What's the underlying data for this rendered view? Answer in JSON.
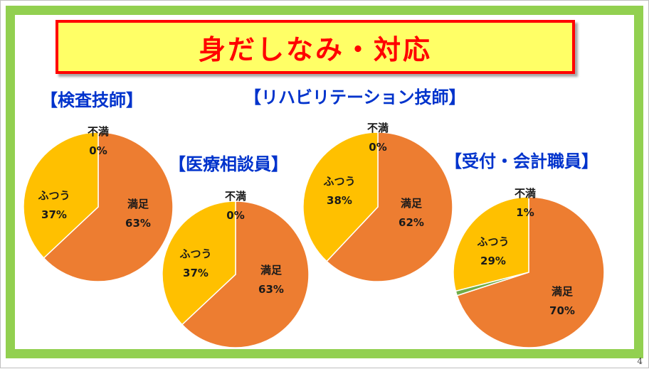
{
  "slide": {
    "title": "身だしなみ・対応",
    "page_number": "4"
  },
  "colors": {
    "frame": "#92d050",
    "title_bg": "#ffff66",
    "title_border": "#ff0000",
    "title_text": "#ff0000",
    "section_title": "#0033cc"
  },
  "chart_data": [
    {
      "type": "pie",
      "title": "【検査技師】",
      "slices": [
        {
          "label": "満足",
          "value": 63,
          "display": "63%",
          "color": "#ed7d31"
        },
        {
          "label": "ふつう",
          "value": 37,
          "display": "37%",
          "color": "#ffc000"
        },
        {
          "label": "不満",
          "value": 0,
          "display": "0%",
          "color": "#70ad47"
        }
      ]
    },
    {
      "type": "pie",
      "title": "【医療相談員】",
      "slices": [
        {
          "label": "満足",
          "value": 63,
          "display": "63%",
          "color": "#ed7d31"
        },
        {
          "label": "ふつう",
          "value": 37,
          "display": "37%",
          "color": "#ffc000"
        },
        {
          "label": "不満",
          "value": 0,
          "display": "0%",
          "color": "#70ad47"
        }
      ]
    },
    {
      "type": "pie",
      "title": "【リハビリテーション技師】",
      "slices": [
        {
          "label": "満足",
          "value": 62,
          "display": "62%",
          "color": "#ed7d31"
        },
        {
          "label": "ふつう",
          "value": 38,
          "display": "38%",
          "color": "#ffc000"
        },
        {
          "label": "不満",
          "value": 0,
          "display": "0%",
          "color": "#70ad47"
        }
      ]
    },
    {
      "type": "pie",
      "title": "【受付・会計職員】",
      "slices": [
        {
          "label": "満足",
          "value": 70,
          "display": "70%",
          "color": "#ed7d31"
        },
        {
          "label": "ふつう",
          "value": 29,
          "display": "29%",
          "color": "#ffc000"
        },
        {
          "label": "不満",
          "value": 1,
          "display": "1%",
          "color": "#70ad47"
        }
      ]
    }
  ]
}
